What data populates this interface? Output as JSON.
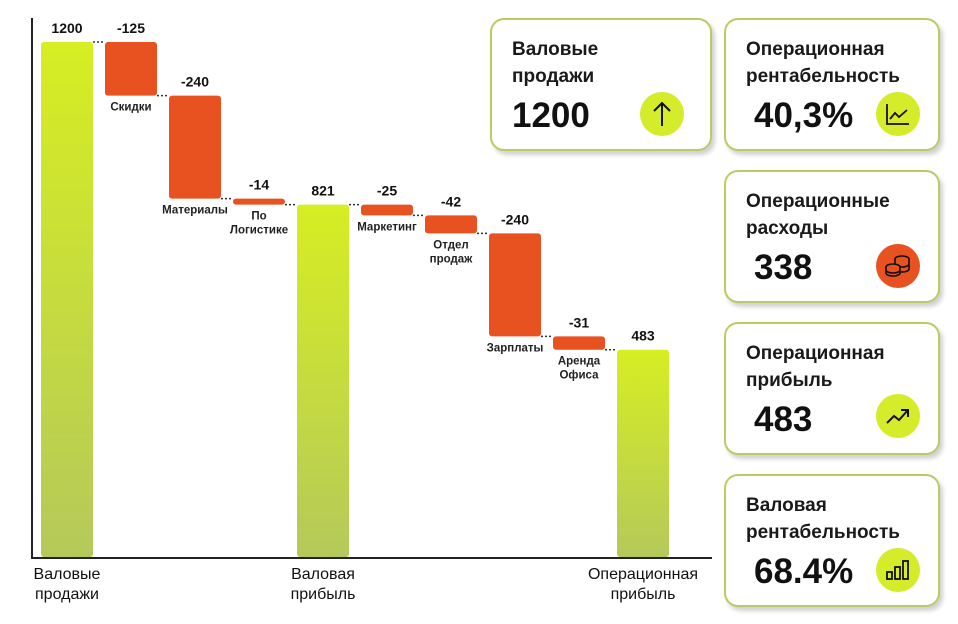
{
  "chart_data": {
    "type": "waterfall",
    "categories": [
      "Валовые продажи",
      "Скидки",
      "Материалы",
      "По Логистике",
      "Валовая прибыль",
      "Маркетинг",
      "Отдел продаж",
      "Зарплаты",
      "Аренда Офиса",
      "Операционная прибыль"
    ],
    "values": [
      1200,
      -125,
      -240,
      -14,
      821,
      -25,
      -42,
      -240,
      -31,
      483
    ],
    "value_labels": [
      "1200",
      "-125",
      "-240",
      "-14",
      "821",
      "-25",
      "-42",
      "-240",
      "-31",
      "483"
    ],
    "kinds": [
      "total",
      "delta",
      "delta",
      "delta",
      "total",
      "delta",
      "delta",
      "delta",
      "delta",
      "total"
    ],
    "ylim": [
      0,
      1200
    ],
    "grid": false,
    "colors": {
      "total_top": "#d6ee22",
      "total_bottom": "#b5c95a",
      "delta": "#e85220"
    }
  },
  "cards": [
    {
      "title": "Валовые продажи",
      "value": "1200",
      "icon": "arrow-up-icon",
      "icon_color": "#d4ec2a"
    },
    {
      "title": "Операционная рентабельность",
      "value": "40,3%",
      "icon": "line-chart-icon",
      "icon_color": "#d4ec2a"
    },
    {
      "title": "Операционные расходы",
      "value": "338",
      "icon": "coins-icon",
      "icon_color": "#e85220"
    },
    {
      "title": "Операционная прибыль",
      "value": "483",
      "icon": "trending-up-icon",
      "icon_color": "#d4ec2a"
    },
    {
      "title": "Валовая рентабельность",
      "value": "68.4%",
      "icon": "bar-chart-icon",
      "icon_color": "#d4ec2a"
    }
  ]
}
